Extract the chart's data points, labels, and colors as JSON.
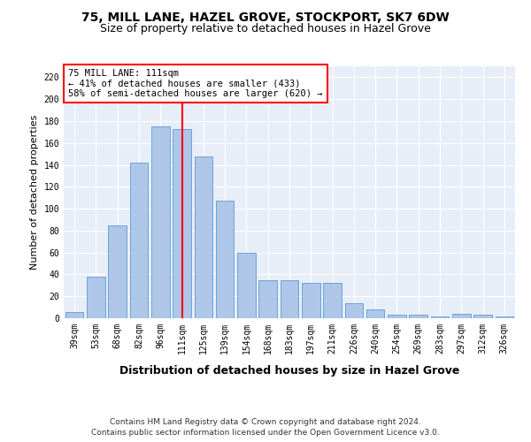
{
  "title": "75, MILL LANE, HAZEL GROVE, STOCKPORT, SK7 6DW",
  "subtitle": "Size of property relative to detached houses in Hazel Grove",
  "xlabel": "Distribution of detached houses by size in Hazel Grove",
  "ylabel": "Number of detached properties",
  "footnote1": "Contains HM Land Registry data © Crown copyright and database right 2024.",
  "footnote2": "Contains public sector information licensed under the Open Government Licence v3.0.",
  "categories": [
    "39sqm",
    "53sqm",
    "68sqm",
    "82sqm",
    "96sqm",
    "111sqm",
    "125sqm",
    "139sqm",
    "154sqm",
    "168sqm",
    "183sqm",
    "197sqm",
    "211sqm",
    "226sqm",
    "240sqm",
    "254sqm",
    "269sqm",
    "283sqm",
    "297sqm",
    "312sqm",
    "326sqm"
  ],
  "values": [
    6,
    38,
    85,
    142,
    175,
    173,
    148,
    107,
    60,
    35,
    35,
    32,
    32,
    14,
    8,
    3,
    3,
    2,
    4,
    3,
    2
  ],
  "bar_color": "#aec6e8",
  "bar_edge_color": "#5a9bd5",
  "vline_x_index": 5,
  "vline_color": "red",
  "annotation_text": "75 MILL LANE: 111sqm\n← 41% of detached houses are smaller (433)\n58% of semi-detached houses are larger (620) →",
  "annotation_box_color": "white",
  "annotation_box_edge": "red",
  "ylim": [
    0,
    230
  ],
  "yticks": [
    0,
    20,
    40,
    60,
    80,
    100,
    120,
    140,
    160,
    180,
    200,
    220
  ],
  "bg_color": "#e8eef7",
  "grid_color": "white",
  "title_fontsize": 10,
  "subtitle_fontsize": 9,
  "ylabel_fontsize": 8,
  "xlabel_fontsize": 9,
  "tick_fontsize": 7,
  "footnote_fontsize": 6.5,
  "annot_fontsize": 7.5
}
